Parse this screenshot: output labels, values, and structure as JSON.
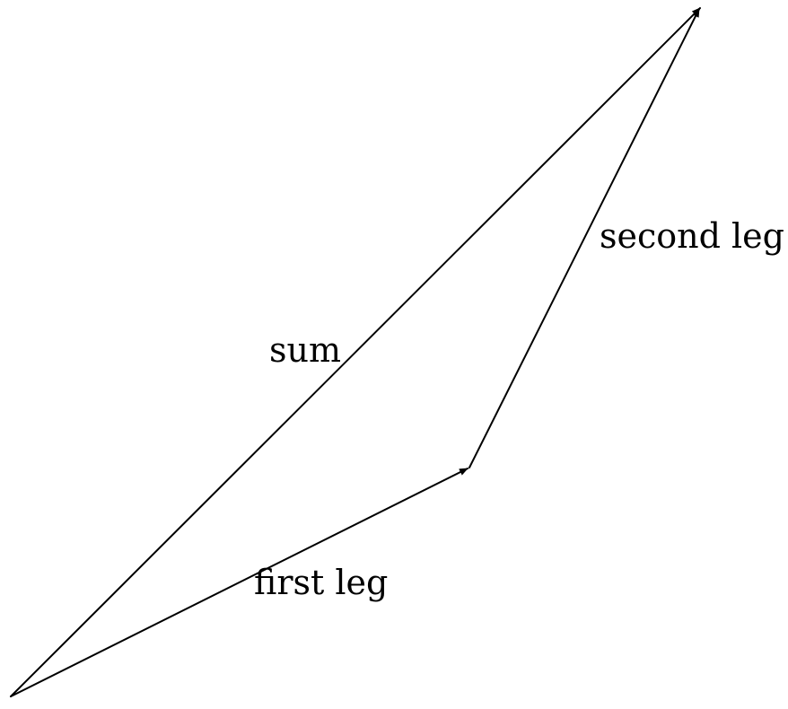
{
  "diagram": {
    "type": "vector-addition",
    "stroke_color": "#000000",
    "text_color": "#000000",
    "labels": {
      "sum": "sum",
      "first_leg": "first leg",
      "second_leg": "second leg"
    }
  }
}
